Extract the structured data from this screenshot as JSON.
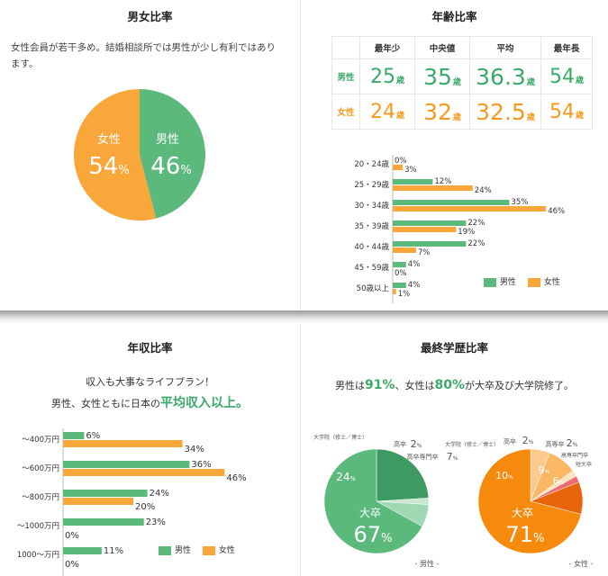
{
  "colors": {
    "male": "#5cb97c",
    "female": "#f9a63a",
    "male_text": "#3aaa6a",
    "female_text": "#f59a1f"
  },
  "gender": {
    "title": "男女比率",
    "intro": "女性会員が若干多め。結婚相談所では男性が少し有利ではあります。",
    "chart_data": {
      "type": "pie",
      "slices": [
        {
          "label": "男性",
          "value": 46,
          "unit": "%"
        },
        {
          "label": "女性",
          "value": 54,
          "unit": "%"
        }
      ]
    }
  },
  "age": {
    "title": "年齢比率",
    "table": {
      "headers": [
        "",
        "最年少",
        "中央値",
        "平均",
        "最年長"
      ],
      "rows": [
        {
          "label": "男性",
          "values": [
            "25",
            "35",
            "36.3",
            "54"
          ]
        },
        {
          "label": "女性",
          "values": [
            "24",
            "32",
            "32.5",
            "54"
          ]
        }
      ],
      "unit": "歳"
    },
    "chart_data": {
      "type": "bar",
      "orientation": "horizontal",
      "categories": [
        "20・24歳",
        "25・29歳",
        "30・34歳",
        "35・39歳",
        "40・44歳",
        "45・59歳",
        "50歳以上"
      ],
      "series": [
        {
          "name": "男性",
          "values": [
            0,
            12,
            35,
            22,
            22,
            4,
            4
          ]
        },
        {
          "name": "女性",
          "values": [
            3,
            24,
            46,
            19,
            7,
            0,
            1
          ]
        }
      ],
      "unit": "%",
      "legend": "bottom-right"
    }
  },
  "income": {
    "title": "年収比率",
    "line1": "収入も大事なライフプラン！",
    "line2_prefix": "男性、女性ともに日本の",
    "line2_highlight": "平均収入以上。",
    "chart_data": {
      "type": "bar",
      "orientation": "horizontal",
      "categories": [
        "～400万円",
        "～600万円",
        "～800万円",
        "～1000万円",
        "1000～万円"
      ],
      "series": [
        {
          "name": "男性",
          "values": [
            6,
            36,
            24,
            23,
            11
          ]
        },
        {
          "name": "女性",
          "values": [
            34,
            46,
            20,
            0,
            0
          ]
        }
      ],
      "unit": "%",
      "legend": "bottom-right"
    }
  },
  "education": {
    "title": "最終学歴比率",
    "summary_a": "男性は",
    "summary_male": "91%",
    "summary_b": "、女性は",
    "summary_female": "80%",
    "summary_c": "が大卒及び大学院修了。",
    "chart_data": [
      {
        "type": "pie",
        "caption": "- 男性 -",
        "slices": [
          {
            "label": "大卒",
            "value": 67,
            "color": "#5cb97c"
          },
          {
            "label": "大学院（修士／博士）",
            "value": 24,
            "color": "#3e9a63"
          },
          {
            "label": "高卒",
            "value": 2,
            "color": "#c6e8d1"
          },
          {
            "label": "高卒専門卒",
            "value": 7,
            "color": "#9fd9b3"
          }
        ]
      },
      {
        "type": "pie",
        "caption": "- 女性 -",
        "slices": [
          {
            "label": "大卒",
            "value": 71,
            "color": "#f58a0c"
          },
          {
            "label": "短大卒",
            "value": 6,
            "color": "#fbcb8d"
          },
          {
            "label": "高専卒門卒",
            "value": 9,
            "color": "#fbb763"
          },
          {
            "label": "高専卒",
            "value": 2,
            "color": "#fde3c1"
          },
          {
            "label": "高卒",
            "value": 2,
            "color": "#f06a72"
          },
          {
            "label": "大学院（修士／博士）",
            "value": 10,
            "color": "#e8650c"
          }
        ]
      }
    ]
  }
}
